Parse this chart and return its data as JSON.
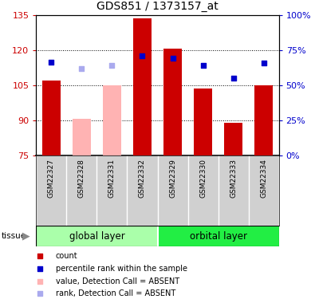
{
  "title": "GDS851 / 1373157_at",
  "samples": [
    "GSM22327",
    "GSM22328",
    "GSM22331",
    "GSM22332",
    "GSM22329",
    "GSM22330",
    "GSM22333",
    "GSM22334"
  ],
  "group_labels": [
    "global layer",
    "orbital layer"
  ],
  "absent": [
    false,
    true,
    true,
    false,
    false,
    false,
    false,
    false
  ],
  "count_values": [
    107.0,
    null,
    null,
    133.5,
    120.5,
    103.5,
    89.0,
    105.0
  ],
  "count_absent_values": [
    null,
    90.5,
    105.0,
    null,
    null,
    null,
    null,
    null
  ],
  "rank_values": [
    115.0,
    null,
    null,
    117.5,
    116.5,
    113.5,
    108.0,
    114.5
  ],
  "rank_absent_values": [
    null,
    112.0,
    113.5,
    null,
    null,
    null,
    null,
    null
  ],
  "ylim": [
    75,
    135
  ],
  "yticks": [
    75,
    90,
    105,
    120,
    135
  ],
  "y2ticks": [
    0,
    25,
    50,
    75,
    100
  ],
  "color_count": "#cc0000",
  "color_count_absent": "#ffb3b3",
  "color_rank": "#0000cc",
  "color_rank_absent": "#aaaaee",
  "color_group1_light": "#aaffaa",
  "color_group2_dark": "#22ee44",
  "color_labels_bg": "#d0d0d0",
  "bar_width": 0.6
}
